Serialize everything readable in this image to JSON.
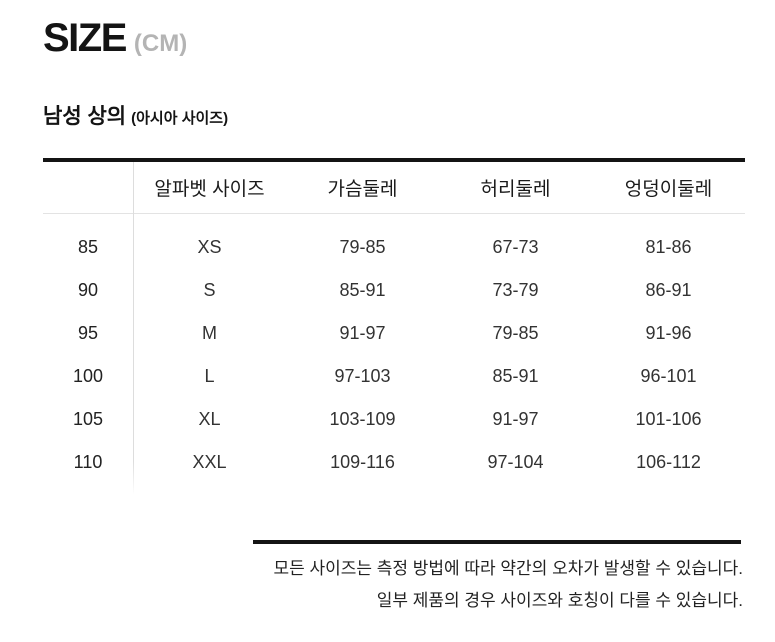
{
  "title": {
    "main": "SIZE",
    "unit": "(CM)"
  },
  "section": {
    "title": "남성 상의",
    "subtitle": "(아시아 사이즈)"
  },
  "chart_data": {
    "type": "table",
    "title": "남성 상의 (아시아 사이즈) 사이즈표",
    "columns": [
      "",
      "알파벳 사이즈",
      "가슴둘레",
      "허리둘레",
      "엉덩이둘레"
    ],
    "rows": [
      [
        "85",
        "XS",
        "79-85",
        "67-73",
        "81-86"
      ],
      [
        "90",
        "S",
        "85-91",
        "73-79",
        "86-91"
      ],
      [
        "95",
        "M",
        "91-97",
        "79-85",
        "91-96"
      ],
      [
        "100",
        "L",
        "97-103",
        "85-91",
        "96-101"
      ],
      [
        "105",
        "XL",
        "103-109",
        "91-97",
        "101-106"
      ],
      [
        "110",
        "XXL",
        "109-116",
        "97-104",
        "106-112"
      ]
    ],
    "unit": "CM"
  },
  "footer": {
    "line1": "모든 사이즈는 측정 방법에 따라 약간의 오차가 발생할 수 있습니다.",
    "line2": "일부 제품의 경우 사이즈와 호칭이 다를 수 있습니다."
  },
  "colors": {
    "text": "#141414",
    "muted": "#b4b4b4",
    "data_text": "#333333",
    "strong_line": "#141414",
    "light_line": "#e3e3e3"
  }
}
